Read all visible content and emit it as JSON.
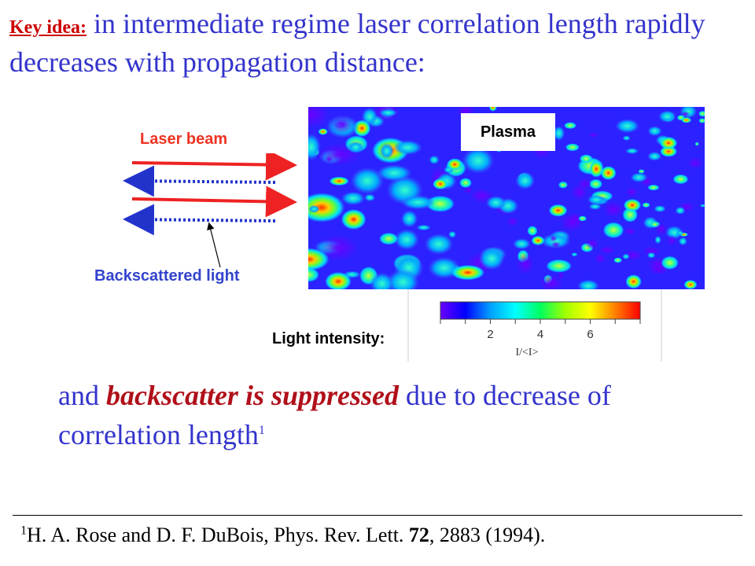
{
  "title": {
    "key_label": "Key idea:",
    "text": " in intermediate regime laser correlation length rapidly decreases with propagation distance:"
  },
  "figure": {
    "laser_label": "Laser beam",
    "backscatter_label": "Backscattered light",
    "plasma_label": "Plasma",
    "intensity_label": "Light intensity:",
    "colorbar": {
      "ticks": [
        "2",
        "4",
        "6"
      ],
      "axis_label": "I/<I>",
      "colors": [
        "#6a00ff",
        "#0000ff",
        "#00a0ff",
        "#00ffff",
        "#00ff60",
        "#a0ff00",
        "#ffff00",
        "#ff8000",
        "#ff0000"
      ]
    },
    "colors": {
      "laser": "#ee2222",
      "backscatter": "#2233cc",
      "map_background": "#2b22ff"
    }
  },
  "conclusion": {
    "before": "and ",
    "emphasis": "backscatter is suppressed",
    "after": " due to decrease of correlation length",
    "note_marker": "1"
  },
  "footnote": {
    "marker": "1",
    "before": "H. A. Rose and D. F. DuBois, Phys. Rev. Lett. ",
    "volume": "72",
    "after": ", 2883 (1994)."
  }
}
